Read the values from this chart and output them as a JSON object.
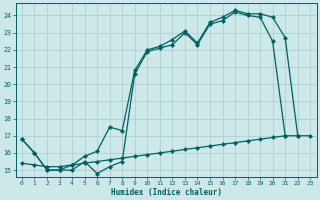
{
  "xlabel": "Humidex (Indice chaleur)",
  "bg_color": "#cce8e8",
  "grid_color": "#aacccc",
  "line_color": "#006060",
  "xlim": [
    -0.5,
    23.5
  ],
  "ylim": [
    14.6,
    24.7
  ],
  "yticks": [
    15,
    16,
    17,
    18,
    19,
    20,
    21,
    22,
    23,
    24
  ],
  "xticks": [
    0,
    1,
    2,
    3,
    4,
    5,
    6,
    7,
    8,
    9,
    10,
    11,
    12,
    13,
    14,
    15,
    16,
    17,
    18,
    19,
    20,
    21,
    22,
    23
  ],
  "line1_x": [
    0,
    1,
    2,
    3,
    4,
    5,
    6,
    7,
    8,
    9,
    10,
    11,
    12,
    13,
    14,
    15,
    16,
    17,
    18,
    19,
    20,
    21
  ],
  "line1_y": [
    16.8,
    16.0,
    15.0,
    15.0,
    15.0,
    15.5,
    14.8,
    15.2,
    15.5,
    20.6,
    21.9,
    22.1,
    22.3,
    23.0,
    22.3,
    23.5,
    23.7,
    24.2,
    24.0,
    23.9,
    22.5,
    17.0
  ],
  "line2_x": [
    0,
    1,
    2,
    3,
    4,
    5,
    6,
    7,
    8,
    9,
    10,
    11,
    12,
    13,
    14,
    15,
    16,
    17,
    18,
    19,
    20,
    21,
    22
  ],
  "line2_y": [
    16.8,
    16.0,
    15.0,
    15.0,
    15.3,
    15.8,
    16.1,
    17.5,
    17.3,
    20.8,
    22.0,
    22.2,
    22.6,
    23.1,
    22.4,
    23.6,
    23.9,
    24.3,
    24.1,
    24.1,
    23.9,
    22.7,
    17.0
  ],
  "line3_x": [
    0,
    1,
    2,
    3,
    4,
    5,
    6,
    7,
    8,
    9,
    10,
    11,
    12,
    13,
    14,
    15,
    16,
    17,
    18,
    19,
    20,
    21,
    22,
    23
  ],
  "line3_y": [
    15.4,
    15.3,
    15.2,
    15.2,
    15.3,
    15.4,
    15.5,
    15.6,
    15.7,
    15.8,
    15.9,
    16.0,
    16.1,
    16.2,
    16.3,
    16.4,
    16.5,
    16.6,
    16.7,
    16.8,
    16.9,
    17.0,
    17.0,
    17.0
  ]
}
